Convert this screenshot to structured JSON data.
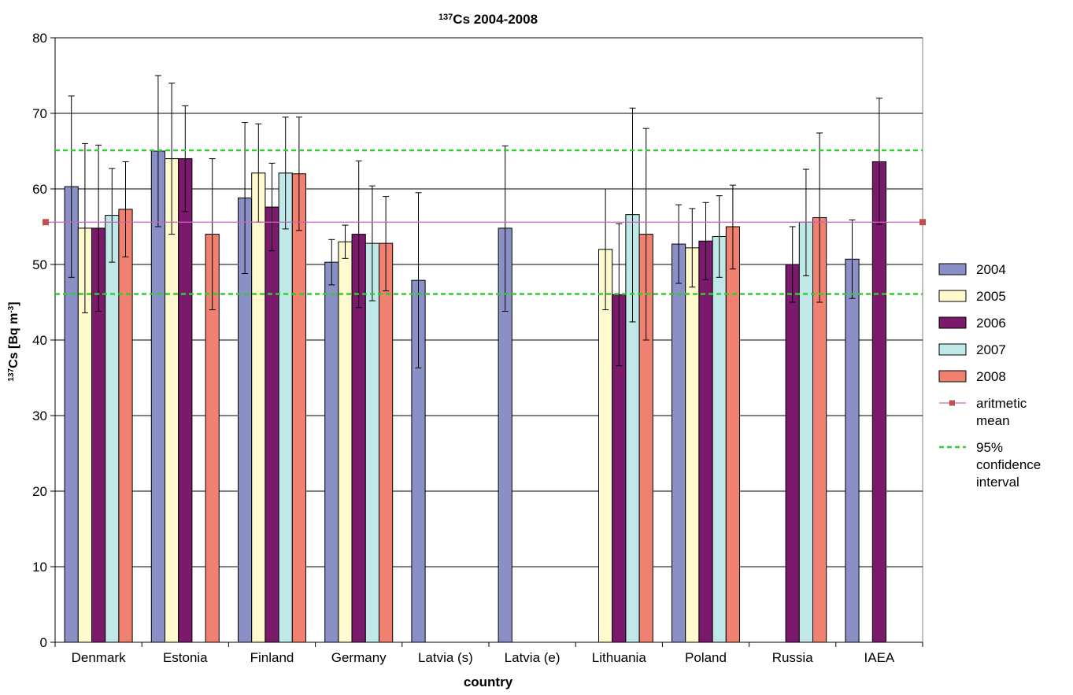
{
  "chart_data": {
    "type": "bar",
    "title_sup": "137",
    "title_main": "Cs 2004-2008",
    "ylabel_sup": "137",
    "ylabel_main": "Cs [Bq m",
    "ylabel_unit_sup": "-3",
    "ylabel_end": "]",
    "xlabel": "country",
    "ylim": [
      0,
      80
    ],
    "yticks": [
      0,
      10,
      20,
      30,
      40,
      50,
      60,
      70,
      80
    ],
    "grid": true,
    "legend_position": "right",
    "categories": [
      "Denmark",
      "Estonia",
      "Finland",
      "Germany",
      "Latvia (s)",
      "Latvia (e)",
      "Lithuania",
      "Poland",
      "Russia",
      "IAEA"
    ],
    "series": [
      {
        "name": "2004",
        "color": "#8a8fc6",
        "values": [
          60.3,
          65,
          58.8,
          50.3,
          47.9,
          54.8,
          null,
          52.7,
          null,
          50.7
        ],
        "err_low": [
          48.3,
          55,
          48.8,
          47.3,
          36.3,
          43.8,
          null,
          47.5,
          null,
          45.5
        ],
        "err_high": [
          72.3,
          75,
          68.8,
          53.3,
          59.5,
          65.7,
          null,
          57.9,
          null,
          55.9
        ]
      },
      {
        "name": "2005",
        "color": "#fffacd",
        "values": [
          54.8,
          64,
          62.1,
          53,
          null,
          null,
          52,
          52.2,
          null,
          null
        ],
        "err_low": [
          43.6,
          54,
          55.6,
          50.8,
          null,
          null,
          44,
          47,
          null,
          null
        ],
        "err_high": [
          66,
          74,
          68.6,
          55.2,
          null,
          null,
          60,
          57.4,
          null,
          null
        ]
      },
      {
        "name": "2006",
        "color": "#7b1a6c",
        "values": [
          54.8,
          64,
          57.6,
          54,
          null,
          null,
          46,
          53.1,
          50,
          63.6
        ],
        "err_low": [
          43.8,
          57,
          51.8,
          44.3,
          null,
          null,
          36.6,
          48,
          45,
          55.3
        ],
        "err_high": [
          65.8,
          71,
          63.4,
          63.7,
          null,
          null,
          55.4,
          58.2,
          55,
          72
        ]
      },
      {
        "name": "2007",
        "color": "#c0e8e8",
        "values": [
          56.5,
          null,
          62.1,
          52.8,
          null,
          null,
          56.6,
          53.7,
          55.6,
          null
        ],
        "err_low": [
          50.3,
          null,
          54.7,
          45.2,
          null,
          null,
          42.4,
          48.3,
          48.5,
          null
        ],
        "err_high": [
          62.7,
          null,
          69.5,
          60.4,
          null,
          null,
          70.7,
          59.1,
          62.6,
          null
        ]
      },
      {
        "name": "2008",
        "color": "#f08070",
        "values": [
          57.3,
          54,
          62,
          52.8,
          null,
          null,
          54,
          55,
          56.2,
          null
        ],
        "err_low": [
          51,
          44,
          54.5,
          46.5,
          null,
          null,
          40,
          49.4,
          45,
          null
        ],
        "err_high": [
          63.6,
          64,
          69.5,
          59,
          null,
          null,
          68,
          60.5,
          67.4,
          null
        ]
      }
    ],
    "reference_lines": [
      {
        "name": "aritmetic mean",
        "legend_lines": [
          "aritmetic",
          "mean"
        ],
        "value": 55.6,
        "color": "#d060c0",
        "marker_color": "#c0504d"
      },
      {
        "name": "95% confidence interval",
        "legend_lines": [
          "95%",
          "confidence",
          "interval"
        ],
        "values": [
          65.1,
          46.1
        ],
        "color": "#33cc33",
        "dashed": true
      }
    ]
  }
}
